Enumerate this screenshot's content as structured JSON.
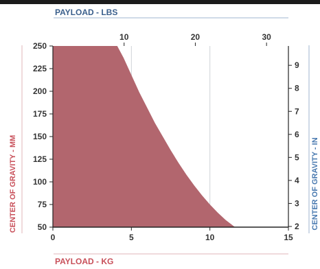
{
  "chart_data": {
    "type": "area",
    "top_axis_title": "PAYLOAD - LBS",
    "bottom_axis_title": "PAYLOAD - KG",
    "left_axis_title": "CENTER OF GRAVITY - MM",
    "right_axis_title": "CENTER OF GRAVITY - IN",
    "x_kg": {
      "range": [
        0,
        15
      ],
      "ticks": [
        "0",
        "5",
        "10",
        "15"
      ]
    },
    "x_lbs": {
      "range": [
        0,
        33.07
      ],
      "ticks": [
        "10",
        "20",
        "30"
      ]
    },
    "y_mm": {
      "range": [
        50,
        250
      ],
      "ticks": [
        "50",
        "75",
        "100",
        "125",
        "150",
        "175",
        "200",
        "225",
        "250"
      ]
    },
    "y_in": {
      "range": [
        1.97,
        9.84
      ],
      "ticks": [
        "2",
        "3",
        "4",
        "5",
        "6",
        "7",
        "8",
        "9"
      ]
    },
    "series": [
      {
        "x": [
          0,
          4.1,
          4.5,
          5.0,
          5.5,
          6.0,
          6.5,
          7.0,
          7.5,
          8.0,
          8.5,
          9.0,
          9.5,
          10.0,
          10.5,
          11.0,
          11.6
        ],
        "y": [
          250,
          250,
          237,
          218,
          199,
          182,
          165,
          150,
          135,
          121,
          108,
          96,
          85,
          75,
          66,
          58,
          50
        ]
      }
    ],
    "grid": true,
    "colors": {
      "fill": "#b2666e",
      "left_title": "#c8505a",
      "right_title": "#4a7ab0",
      "top_title": "#3a5f8c",
      "bottom_title": "#c8505a",
      "grid": "#cfd3d8",
      "rule": "#9fb6cf"
    }
  }
}
